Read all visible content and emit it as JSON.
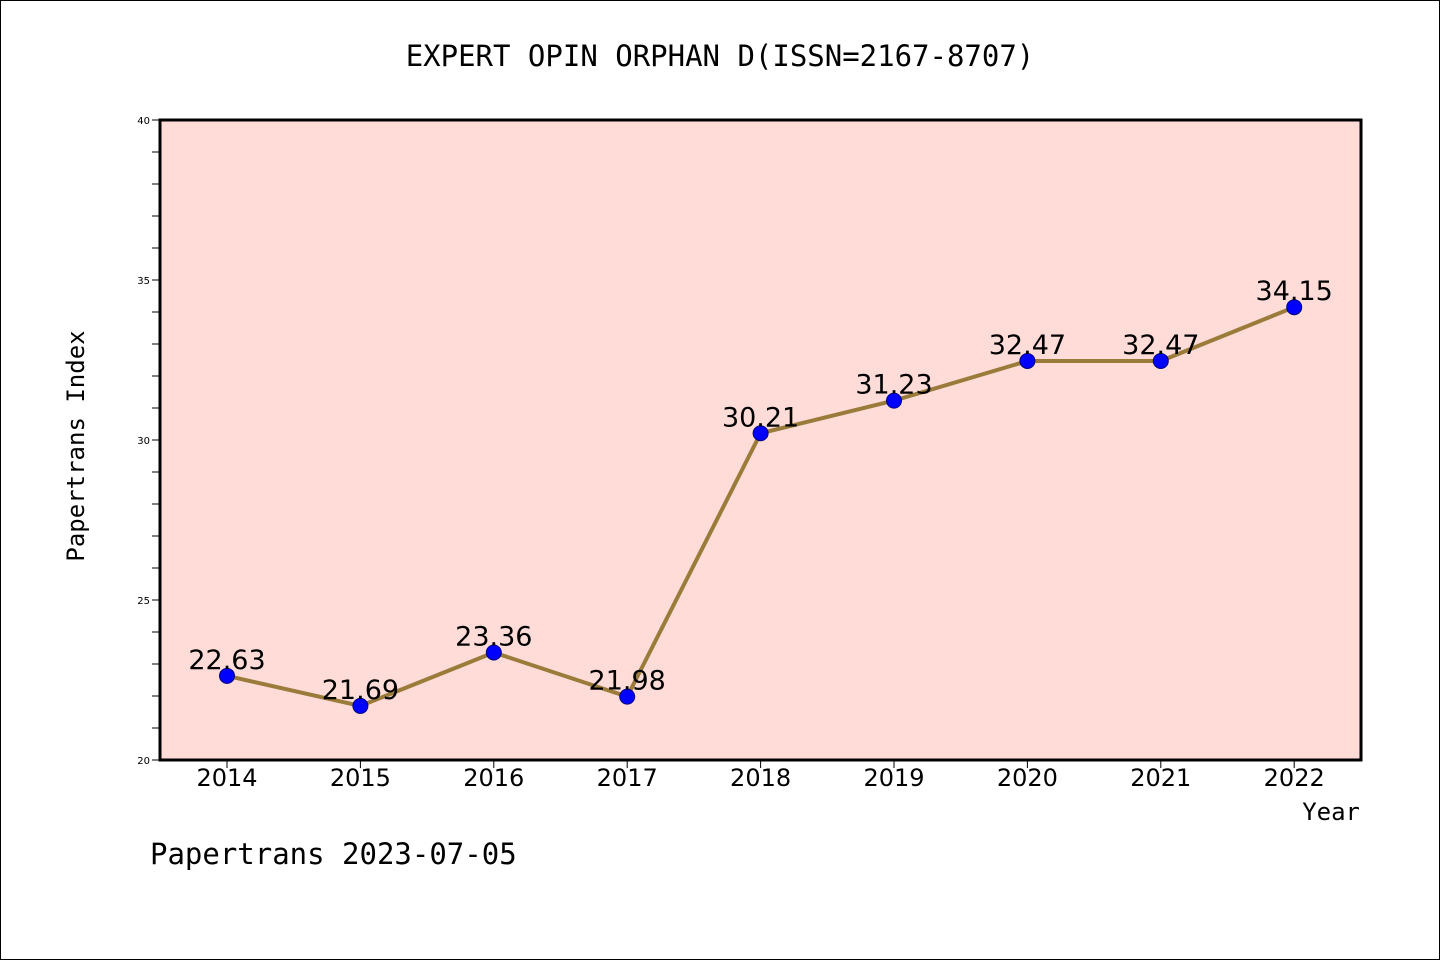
{
  "chart_data": {
    "type": "line",
    "title": "EXPERT OPIN ORPHAN D(ISSN=2167-8707)",
    "xlabel": "Year",
    "ylabel": "Papertrans Index",
    "categories": [
      "2014",
      "2015",
      "2016",
      "2017",
      "2018",
      "2019",
      "2020",
      "2021",
      "2022"
    ],
    "values": [
      22.63,
      21.69,
      23.36,
      21.98,
      30.21,
      31.23,
      32.47,
      32.47,
      34.15
    ],
    "data_labels": [
      "22.63",
      "21.69",
      "23.36",
      "21.98",
      "30.21",
      "31.23",
      "32.47",
      "32.47",
      "34.15"
    ],
    "ylim": [
      20,
      40
    ],
    "yticks": [
      "20",
      "25",
      "30",
      "35",
      "40"
    ],
    "grid": false,
    "legend": "none",
    "footer": "Papertrans 2023-07-05",
    "colors": {
      "background": "#ffffff",
      "plot_background": "#ffdcd8",
      "line": "#9a7b3a",
      "marker": "#0000ff",
      "axis": "#000000"
    }
  }
}
